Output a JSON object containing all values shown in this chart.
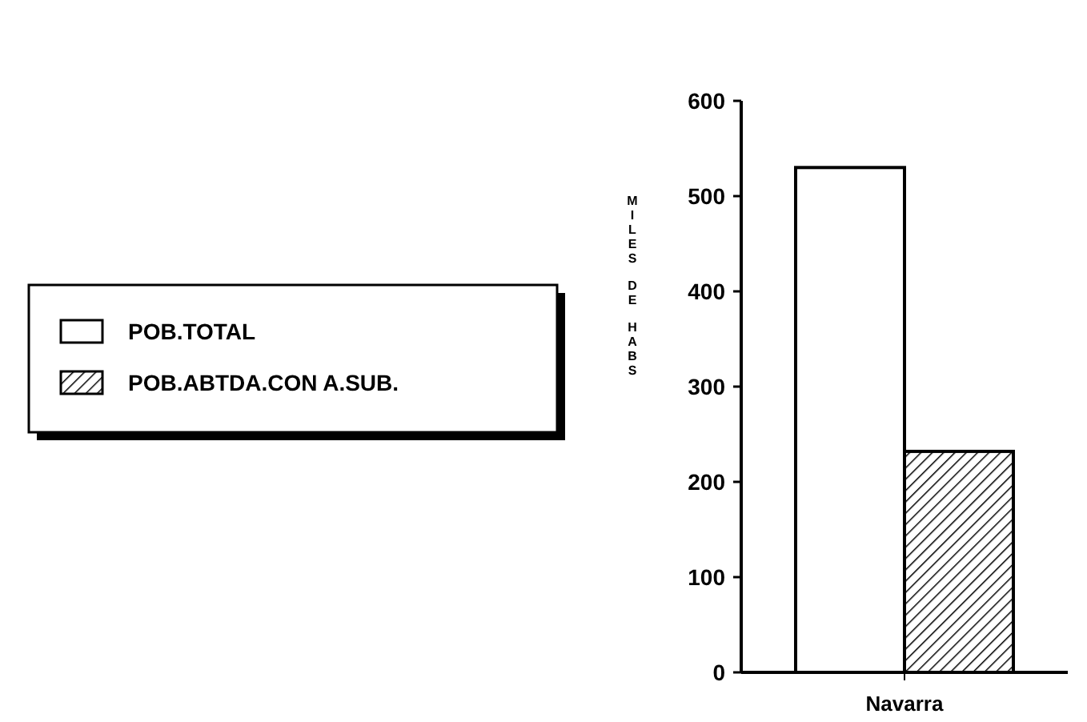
{
  "chart_data": {
    "type": "bar",
    "ylabel": "MILES DE HABS",
    "categories": [
      "Navarra"
    ],
    "series": [
      {
        "name": "POB.TOTAL",
        "color": "#ffffff",
        "values": [
          530
        ]
      },
      {
        "name": "POB.ABTDA.CON A.SUB.",
        "color": "#000000",
        "values": [
          232
        ]
      }
    ],
    "ylim": [
      0,
      600
    ],
    "yticks": [
      0,
      100,
      200,
      300,
      400,
      500,
      600
    ],
    "legend": "left"
  }
}
